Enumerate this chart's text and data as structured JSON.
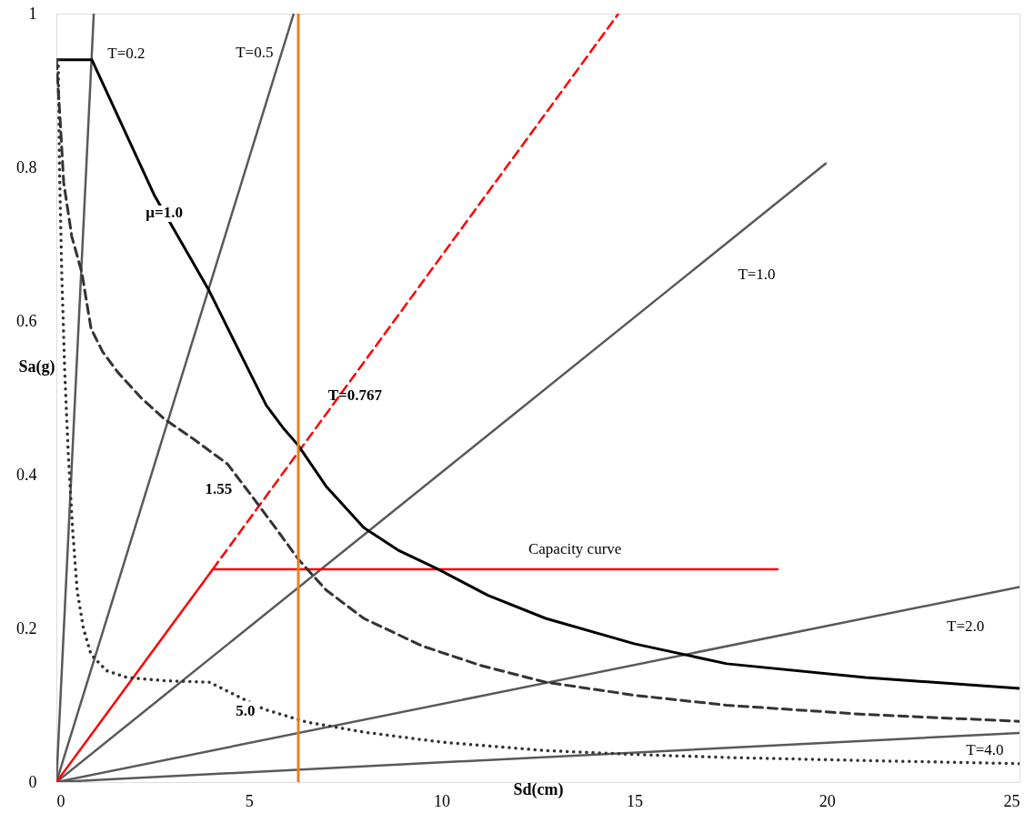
{
  "chart_data": {
    "type": "line",
    "xlabel": "Sd(cm)",
    "ylabel": "Sa(g)",
    "xlim": [
      0,
      25
    ],
    "ylim": [
      0,
      1
    ],
    "xticks": [
      0,
      5,
      10,
      15,
      20,
      25
    ],
    "yticks": [
      0,
      0.2,
      0.4,
      0.6,
      0.8,
      1
    ],
    "grid": false,
    "marker": "none",
    "series": [
      {
        "color": "#595959",
        "line_style": "solid",
        "x": [
          0,
          0.97
        ],
        "values": [
          0,
          1
        ]
      },
      {
        "color": "#595959",
        "line_style": "solid",
        "x": [
          0,
          6.16
        ],
        "values": [
          0,
          1
        ]
      },
      {
        "color": "#595959",
        "line_style": "solid",
        "x": [
          0,
          19.97
        ],
        "values": [
          0,
          0.805
        ]
      },
      {
        "color": "#595959",
        "line_style": "solid",
        "x": [
          0,
          25
        ],
        "values": [
          0,
          0.254
        ]
      },
      {
        "color": "#595959",
        "line_style": "solid",
        "x": [
          0,
          25
        ],
        "values": [
          0,
          0.064
        ]
      },
      {
        "color": "#ff0000",
        "line_style": "dashed",
        "x": [
          4.06,
          14.59
        ],
        "values": [
          0.277,
          1
        ]
      },
      {
        "color": "#ff0000",
        "line_style": "solid",
        "x": [
          0,
          4.06,
          18.72
        ],
        "values": [
          0,
          0.277,
          0.277
        ]
      },
      {
        "color": "#000000",
        "line_style": "solid",
        "x": [
          0,
          0.92,
          2.55,
          3.97,
          5.0,
          5.45,
          5.9,
          6.28,
          7.0,
          7.98,
          8.9,
          9.87,
          11.2,
          12.7,
          15,
          17.4,
          21,
          25
        ],
        "values": [
          0.94,
          0.94,
          0.763,
          0.639,
          0.535,
          0.49,
          0.46,
          0.438,
          0.385,
          0.331,
          0.301,
          0.278,
          0.243,
          0.213,
          0.18,
          0.154,
          0.136,
          0.122
        ]
      },
      {
        "color": "#333333",
        "line_style": "dashed",
        "x": [
          0,
          0.1,
          0.19,
          0.4,
          0.66,
          0.9,
          1.2,
          1.6,
          2.2,
          2.79,
          3.6,
          4.44,
          5.15,
          5.7,
          6.28,
          7.0,
          7.98,
          9.5,
          11,
          12.7,
          15,
          17.4,
          21,
          25
        ],
        "values": [
          0.94,
          0.86,
          0.78,
          0.71,
          0.663,
          0.59,
          0.56,
          0.533,
          0.5,
          0.473,
          0.445,
          0.414,
          0.367,
          0.33,
          0.29,
          0.25,
          0.213,
          0.177,
          0.152,
          0.13,
          0.113,
          0.1,
          0.088,
          0.079
        ]
      },
      {
        "color": "#333333",
        "line_style": "dotted",
        "x": [
          0.05,
          0.08,
          0.14,
          0.22,
          0.31,
          0.42,
          0.54,
          0.7,
          0.9,
          1.3,
          1.84,
          2.8,
          3.97,
          5.38,
          6.5,
          7.98,
          10,
          12.7,
          15,
          17.4,
          21,
          25
        ],
        "values": [
          0.94,
          0.8,
          0.66,
          0.53,
          0.426,
          0.33,
          0.249,
          0.2,
          0.166,
          0.145,
          0.136,
          0.132,
          0.13,
          0.095,
          0.078,
          0.065,
          0.052,
          0.041,
          0.036,
          0.032,
          0.028,
          0.024
        ]
      }
    ],
    "ref_lines": [
      {
        "axis": "x",
        "value": 6.28,
        "color": "#e8801e"
      }
    ],
    "annotations": [
      {
        "text": "T=0.2",
        "x": 0.92,
        "y": 0.948
      },
      {
        "text": "T=0.5",
        "x": 5.85,
        "y": 0.949
      },
      "T=1.0",
      {
        "text": "T=0.767",
        "x": 7.35,
        "y": 0.503
      },
      {
        "text": "T=2.0",
        "x": 23.6,
        "y": 0.24
      },
      {
        "text": "T=4.0",
        "x": 24.1,
        "y": 0.0617
      },
      {
        "text": "μ=1.0",
        "x": 2.8,
        "y": 0.741
      },
      {
        "text": "1.55",
        "x": 4.8,
        "y": 0.39
      },
      {
        "text": "5.0",
        "x": 4.91,
        "y": 0.107
      },
      {
        "text": "Capacity curve",
        "x": 13.46,
        "y": 0.277
      }
    ]
  }
}
